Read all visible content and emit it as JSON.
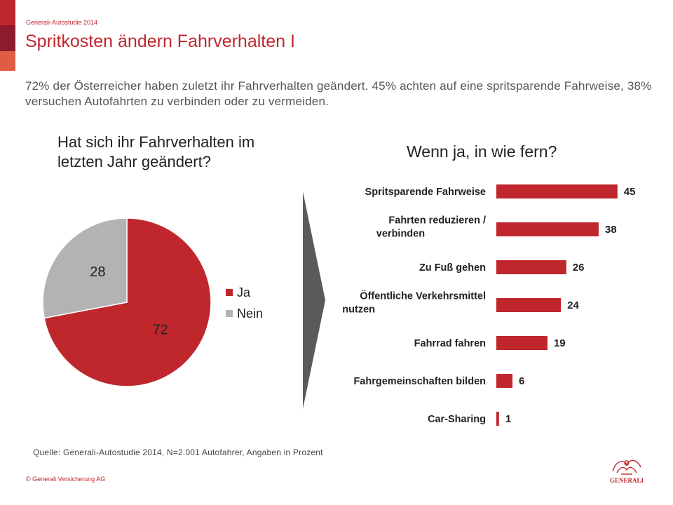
{
  "header": {
    "kicker": "Generali-Autostudie 2014",
    "title": "Spritkosten ändern Fahrverhalten I",
    "summary": "72% der Österreicher haben zuletzt ihr Fahrverhalten geändert. 45% achten auf eine spritsparende Fahrweise, 38% versuchen Autofahrten zu verbinden oder zu vermeiden."
  },
  "footer": {
    "source": "Quelle: Generali-Autostudie 2014, N=2.001 Autofahrer, Angaben in Prozent",
    "copyright": "© Generali Versicherung AG",
    "logo_text": "GENERALI"
  },
  "colors": {
    "accent": "#c0272d",
    "grey": "#b3b3b3",
    "arrow": "#5a5a5a"
  },
  "chart_data": [
    {
      "type": "pie",
      "title": "Hat sich ihr Fahrverhalten im letzten Jahr geändert?",
      "labels": [
        "Ja",
        "Nein"
      ],
      "values": [
        72,
        28
      ],
      "colors": [
        "#c0272d",
        "#b3b3b3"
      ],
      "legend": "right"
    },
    {
      "type": "bar",
      "orientation": "horizontal",
      "title": "Wenn ja, in wie fern?",
      "categories": [
        [
          "Spritsparende Fahrweise"
        ],
        [
          "Fahrten reduzieren /",
          "verbinden"
        ],
        [
          "Zu Fuß gehen"
        ],
        [
          "Öffentliche Verkehrsmittel",
          "nutzen"
        ],
        [
          "Fahrrad fahren"
        ],
        [
          "Fahrgemeinschaften bilden"
        ],
        [
          "Car-Sharing"
        ]
      ],
      "values": [
        45,
        38,
        26,
        24,
        19,
        6,
        1
      ],
      "color": "#c0272d",
      "xlim": [
        0,
        50
      ]
    }
  ]
}
